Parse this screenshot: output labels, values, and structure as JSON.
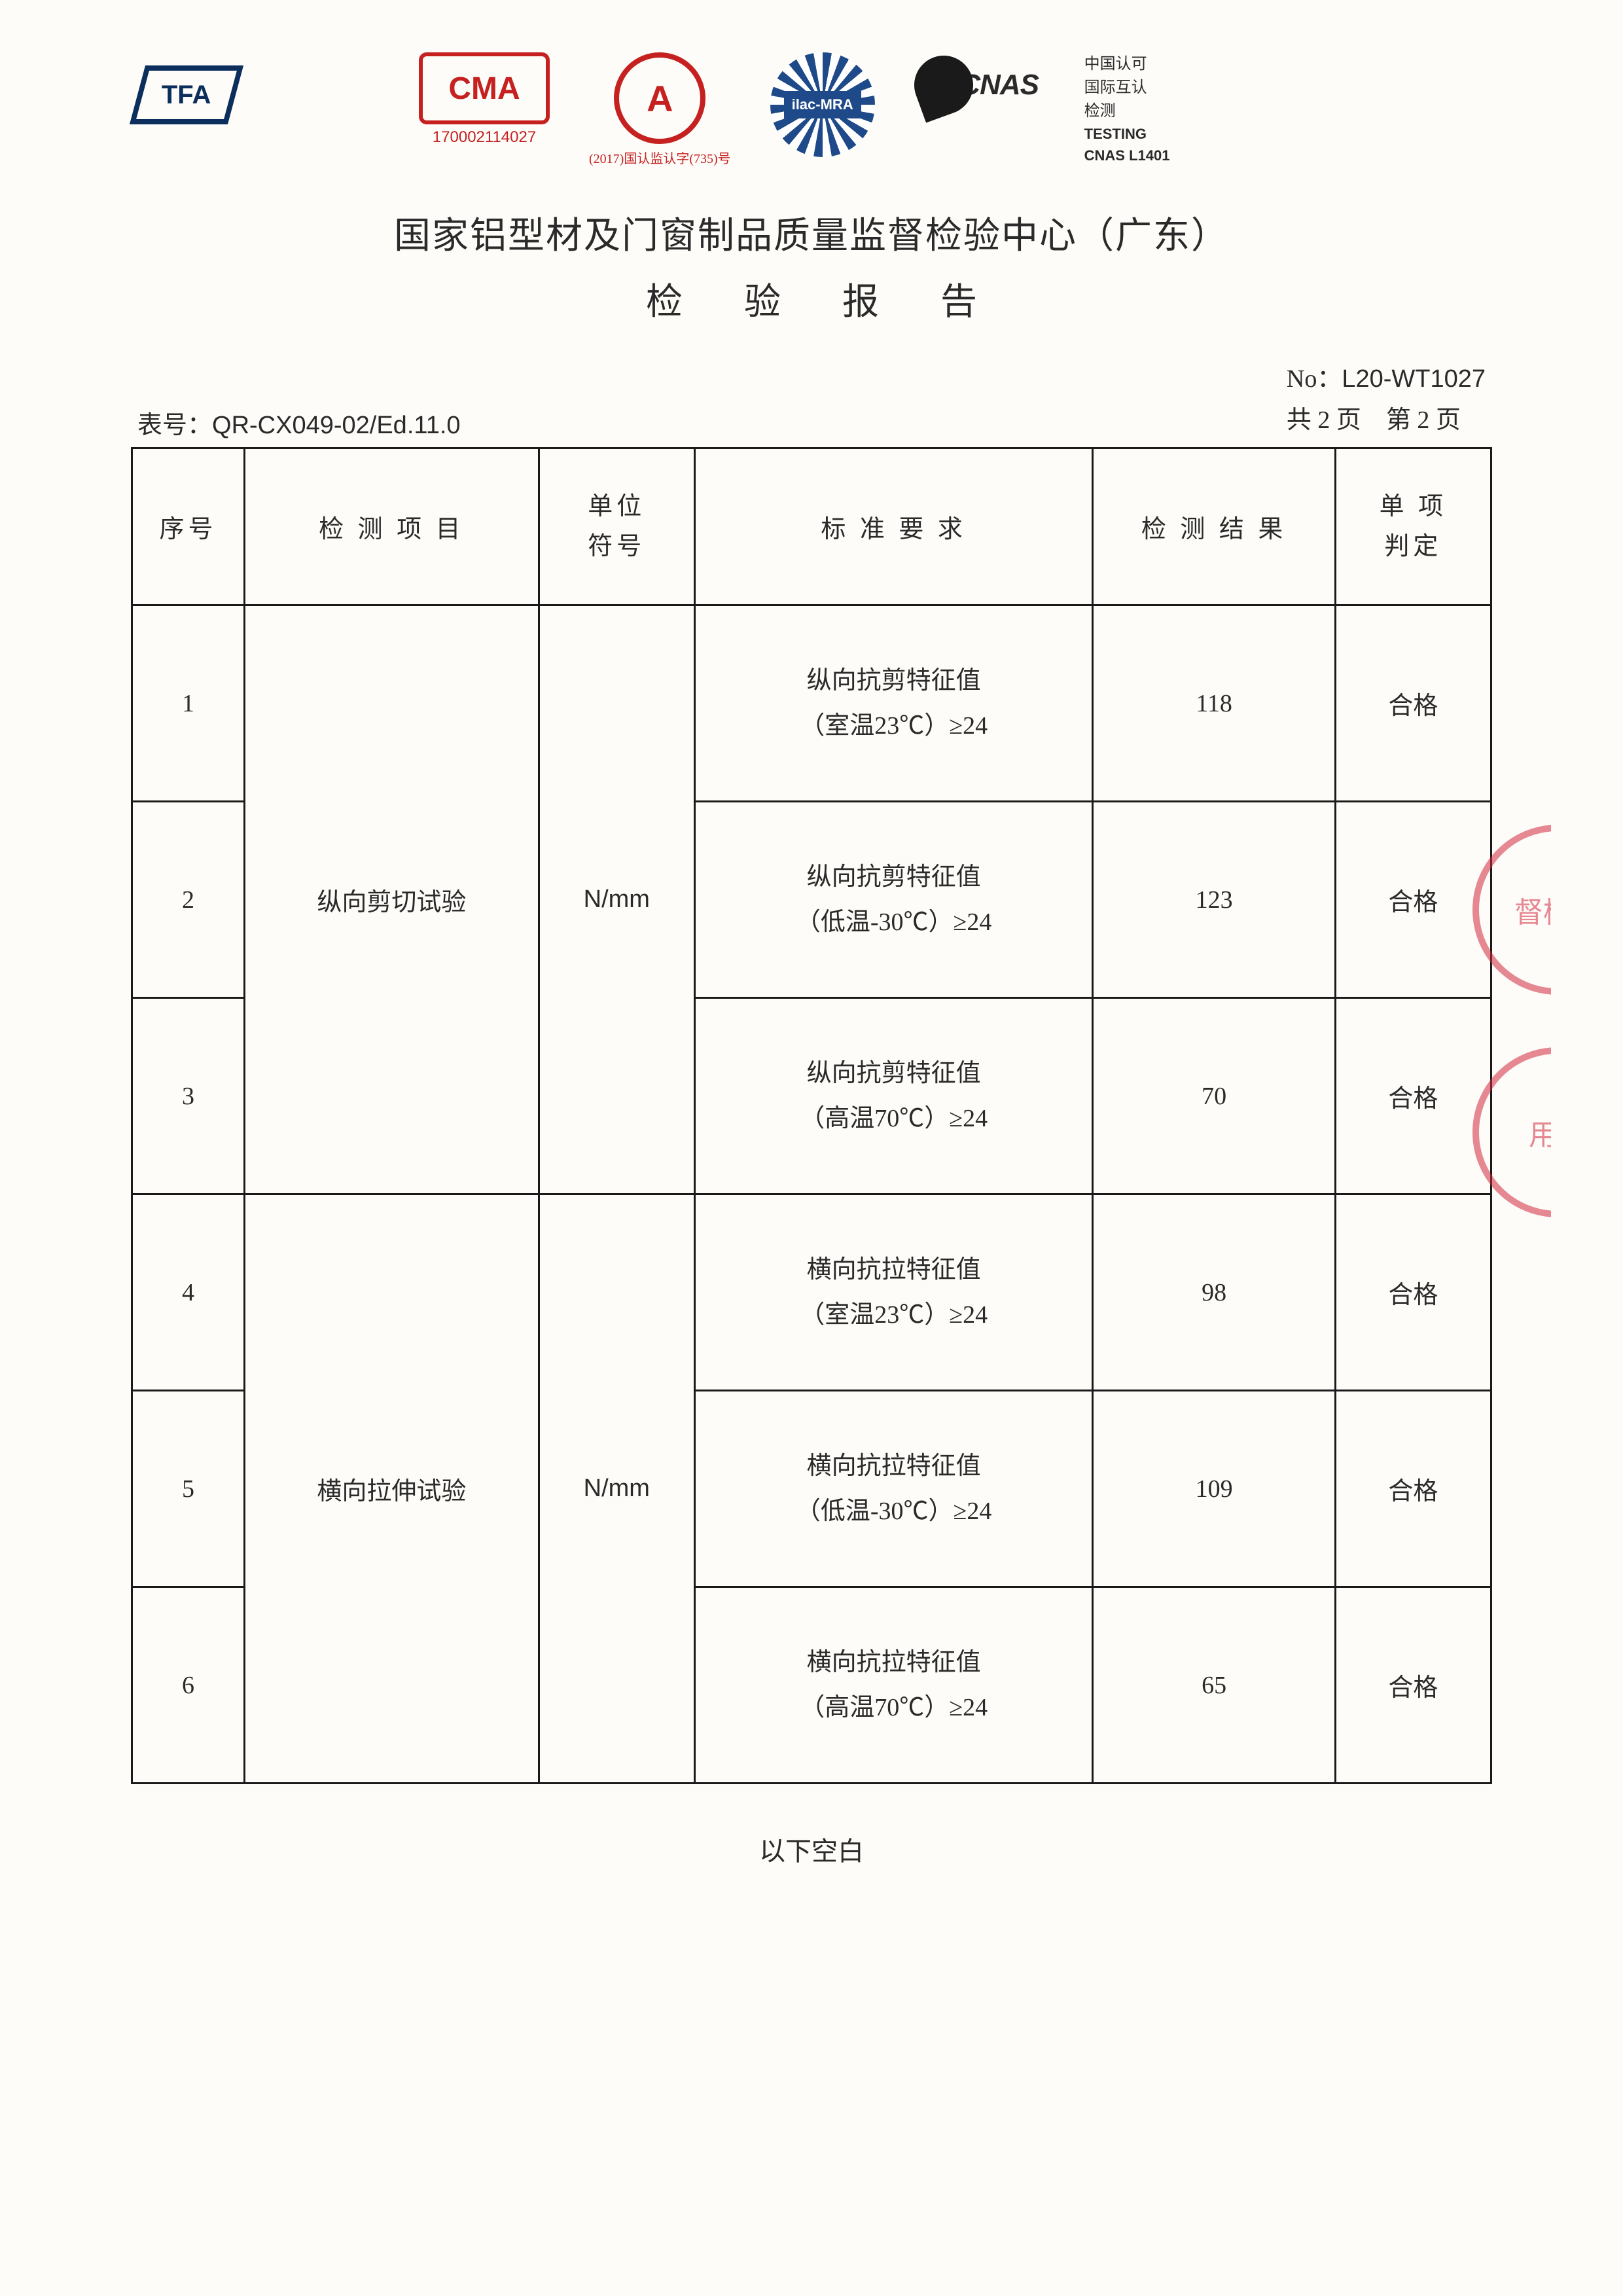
{
  "logos": {
    "tfa": "TFA",
    "cma": "CMA",
    "cma_code": "170002114027",
    "cal": "A",
    "cal_sub": "(2017)国认监认字(735)号",
    "ilac": "ilac-MRA",
    "cnas": "CNAS",
    "cert_line1": "中国认可",
    "cert_line2": "国际互认",
    "cert_line3": "检测",
    "cert_line4_en": "TESTING",
    "cert_line5_en": "CNAS L1401"
  },
  "titles": {
    "org": "国家铝型材及门窗制品质量监督检验中心（广东）",
    "report": "检 验 报 告"
  },
  "meta": {
    "form_no_label": "表号：",
    "form_no": "QR-CX049-02/Ed.11.0",
    "report_no_label": "No：",
    "report_no": "L20-WT1027",
    "page_info": "共 2 页　第 2 页"
  },
  "headers": {
    "seq": "序号",
    "item": "检 测 项 目",
    "unit": "单位符号",
    "req": "标 准 要 求",
    "result": "检 测 结 果",
    "judge": "单 项判定"
  },
  "groups": [
    {
      "item": "纵向剪切试验",
      "unit": "N/mm",
      "rows": [
        {
          "seq": "1",
          "req_l1": "纵向抗剪特征值",
          "req_l2": "（室温23℃）≥24",
          "result": "118",
          "judge": "合格"
        },
        {
          "seq": "2",
          "req_l1": "纵向抗剪特征值",
          "req_l2": "（低温-30℃）≥24",
          "result": "123",
          "judge": "合格"
        },
        {
          "seq": "3",
          "req_l1": "纵向抗剪特征值",
          "req_l2": "（高温70℃）≥24",
          "result": "70",
          "judge": "合格"
        }
      ]
    },
    {
      "item": "横向拉伸试验",
      "unit": "N/mm",
      "rows": [
        {
          "seq": "4",
          "req_l1": "横向抗拉特征值",
          "req_l2": "（室温23℃）≥24",
          "result": "98",
          "judge": "合格"
        },
        {
          "seq": "5",
          "req_l1": "横向抗拉特征值",
          "req_l2": "（低温-30℃）≥24",
          "result": "109",
          "judge": "合格"
        },
        {
          "seq": "6",
          "req_l1": "横向抗拉特征值",
          "req_l2": "（高温70℃）≥24",
          "result": "65",
          "judge": "合格"
        }
      ]
    }
  ],
  "footer": "以下空白",
  "stamps": {
    "s1": "督检验",
    "s2": "用章"
  }
}
